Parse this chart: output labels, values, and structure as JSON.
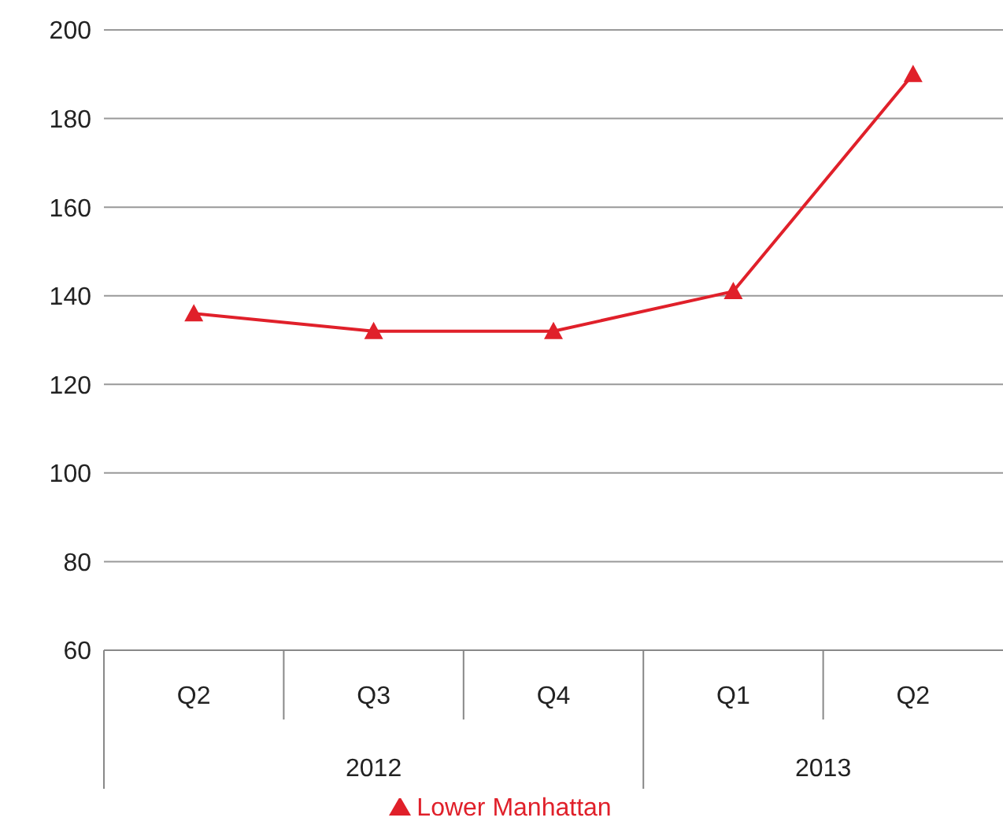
{
  "chart_data": {
    "type": "line",
    "categories": [
      "Q2",
      "Q3",
      "Q4",
      "Q1",
      "Q2"
    ],
    "series": [
      {
        "name": "Lower Manhattan",
        "color": "#e0202a",
        "values": [
          136,
          132,
          132,
          141,
          190
        ]
      }
    ],
    "annotations": [
      "2012",
      "2013"
    ],
    "ylim": [
      60,
      200
    ],
    "yticks": [
      60,
      80,
      100,
      120,
      140,
      160,
      180,
      200
    ],
    "grid": "y",
    "legend": "bottom",
    "marker": "triangle",
    "line_style": "solid"
  }
}
